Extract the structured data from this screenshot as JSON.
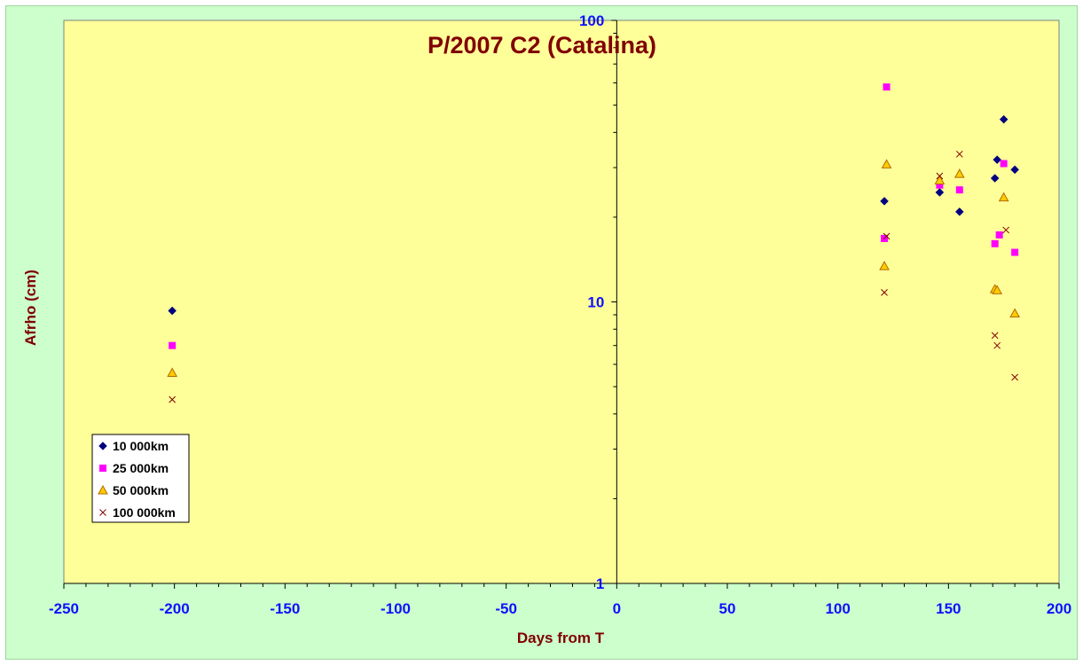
{
  "chart_data": {
    "type": "scatter",
    "title": "P/2007 C2 (Catalina)",
    "xlabel": "Days from T",
    "ylabel": "Afrho (cm)",
    "xlim": [
      -250,
      200
    ],
    "ylim": [
      1,
      100
    ],
    "y_scale": "log",
    "x_ticks": [
      -250,
      -200,
      -150,
      -100,
      -50,
      0,
      50,
      100,
      150,
      200
    ],
    "x_tick_labels": [
      "-250",
      "-200",
      "-150",
      "-100",
      "-50",
      "0",
      "50",
      "100",
      "150",
      "200"
    ],
    "y_ticks": [
      1,
      10,
      100
    ],
    "y_tick_labels": [
      "1",
      "10",
      "100"
    ],
    "grid": false,
    "legend_position": "bottom-left",
    "plot_background": "#ffff99",
    "chart_background": "#ccffcc",
    "series": [
      {
        "name": "10 000km",
        "marker": "diamond",
        "color": "#000080",
        "points": [
          [
            -201,
            9.3
          ],
          [
            121,
            22.8
          ],
          [
            146,
            24.5
          ],
          [
            155,
            20.9
          ],
          [
            171,
            27.5
          ],
          [
            172,
            32
          ],
          [
            175,
            44.5
          ],
          [
            180,
            29.5
          ]
        ]
      },
      {
        "name": "25 000km",
        "marker": "square",
        "color": "#ff00ff",
        "points": [
          [
            -201,
            7
          ],
          [
            121,
            16.8
          ],
          [
            122,
            58
          ],
          [
            146,
            26
          ],
          [
            155,
            25
          ],
          [
            171,
            16.1
          ],
          [
            173,
            17.3
          ],
          [
            175,
            31
          ],
          [
            180,
            15
          ]
        ]
      },
      {
        "name": "50 000km",
        "marker": "triangle",
        "color": "#ffcc00",
        "stroke": "#b36b00",
        "points": [
          [
            -201,
            5.6
          ],
          [
            121,
            13.4
          ],
          [
            122,
            30.8
          ],
          [
            146,
            27
          ],
          [
            155,
            28.5
          ],
          [
            171,
            11.1
          ],
          [
            172,
            11
          ],
          [
            175,
            23.5
          ],
          [
            180,
            9.1
          ]
        ]
      },
      {
        "name": "100 000km",
        "marker": "x",
        "color": "#800000",
        "points": [
          [
            -201,
            4.5
          ],
          [
            121,
            10.8
          ],
          [
            122,
            17.1
          ],
          [
            146,
            28
          ],
          [
            155,
            33.5
          ],
          [
            171,
            7.6
          ],
          [
            172,
            7
          ],
          [
            176,
            18
          ],
          [
            180,
            5.4
          ]
        ]
      }
    ]
  }
}
